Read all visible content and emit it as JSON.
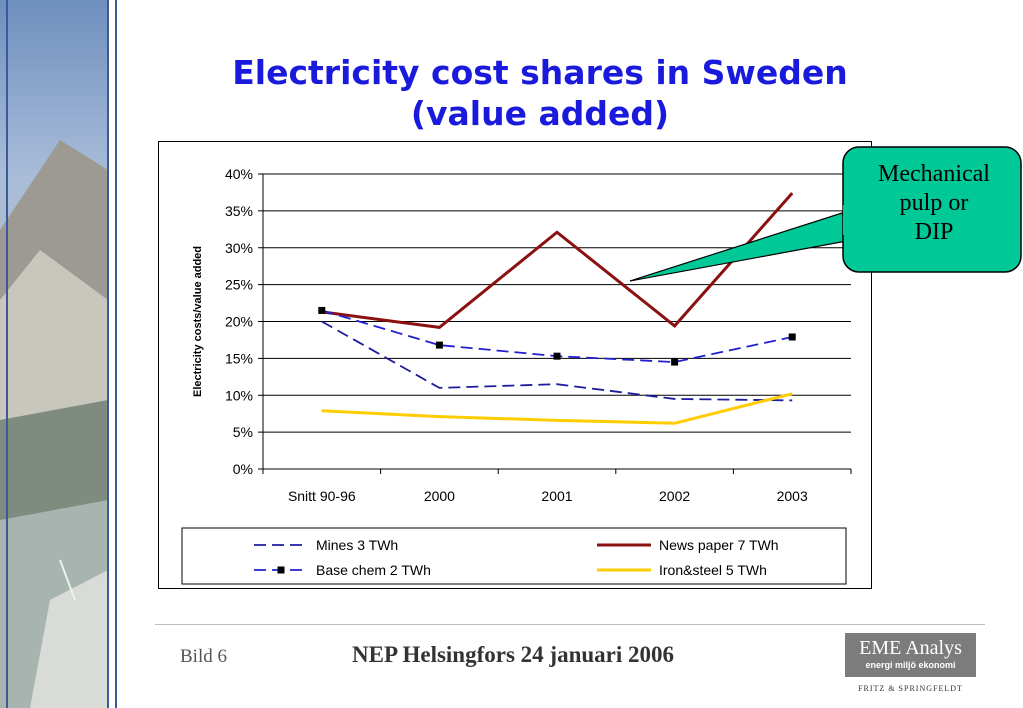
{
  "slide": {
    "title_line1": "Electricity cost shares in Sweden",
    "title_line2": "(value added)",
    "callout_lines": [
      "Mechanical",
      "pulp or",
      "DIP"
    ],
    "footer_left": "Bild 6",
    "footer_center": "NEP Helsingfors 24 januari 2006",
    "logo_name": "EME Analys",
    "logo_tagline": "energi miljö ekonomi",
    "logo_subtext": "FRITZ & SPRINGFELDT"
  },
  "colors": {
    "title": "#1a1adc",
    "mines": "#1c1c9c",
    "news_paper": "#8b1010",
    "base_chem": "#2020d0",
    "iron_steel": "#ffcc00",
    "callout_fill": "#00c896"
  },
  "chart_data": {
    "type": "line",
    "title": "",
    "xlabel": "",
    "ylabel": "Electricity costs/value added",
    "categories": [
      "Snitt 90-96",
      "2000",
      "2001",
      "2002",
      "2003"
    ],
    "ylim": [
      0,
      0.4
    ],
    "yticks": [
      "0%",
      "5%",
      "10%",
      "15%",
      "20%",
      "25%",
      "30%",
      "35%",
      "40%"
    ],
    "grid": true,
    "legend_position": "bottom",
    "series": [
      {
        "name": "Mines 3 TWh",
        "values": [
          0.2,
          0.11,
          0.115,
          0.095,
          0.093
        ],
        "style": "dashed",
        "marker": "none",
        "color": "#1c1c9c"
      },
      {
        "name": "News paper 7 TWh",
        "values": [
          0.213,
          0.192,
          0.321,
          0.194,
          0.374
        ],
        "style": "solid",
        "marker": "none",
        "color": "#8b1010"
      },
      {
        "name": "Base chem 2 TWh",
        "values": [
          0.215,
          0.168,
          0.153,
          0.145,
          0.179
        ],
        "style": "dashed",
        "marker": "square",
        "color": "#2020d0"
      },
      {
        "name": "Iron&steel 5 TWh",
        "values": [
          0.079,
          0.071,
          0.066,
          0.062,
          0.102
        ],
        "style": "solid",
        "marker": "none",
        "color": "#ffcc00"
      }
    ]
  }
}
